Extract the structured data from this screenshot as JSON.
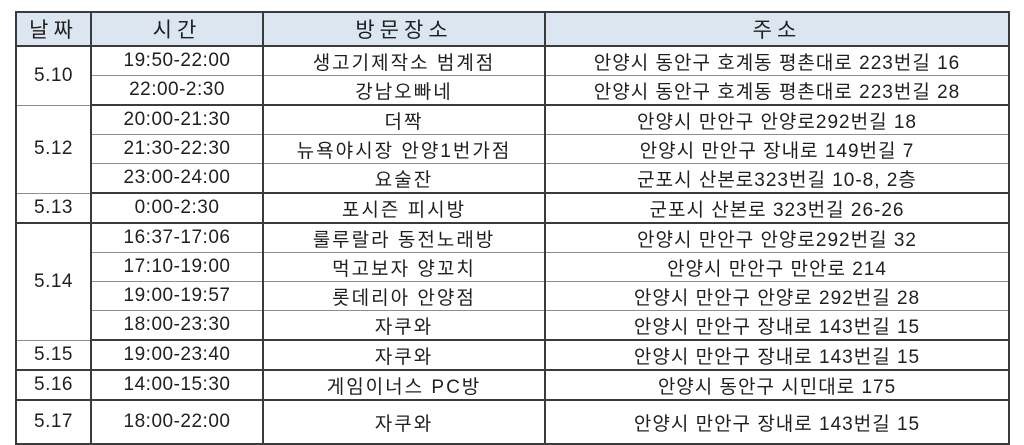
{
  "table": {
    "headers": {
      "date": "날짜",
      "time": "시간",
      "place": "방문장소",
      "address": "주소"
    },
    "groups": [
      {
        "date": "5.10",
        "rows": [
          {
            "time": "19:50-22:00",
            "place": "생고기제작소 범계점",
            "address": "안양시 동안구 호계동 평촌대로 223번길 16"
          },
          {
            "time": "22:00-2:30",
            "place": "강남오빠네",
            "address": "안양시 동안구 호계동 평촌대로 223번길 28"
          }
        ]
      },
      {
        "date": "5.12",
        "rows": [
          {
            "time": "20:00-21:30",
            "place": "더짝",
            "address": "안양시 만안구 안양로292번길 18"
          },
          {
            "time": "21:30-22:30",
            "place": "뉴욕야시장 안양1번가점",
            "address": "안양시 만안구 장내로 149번길 7"
          },
          {
            "time": "23:00-24:00",
            "place": "요술잔",
            "address": "군포시 산본로323번길 10-8, 2층"
          }
        ]
      },
      {
        "date": "5.13",
        "rows": [
          {
            "time": "0:00-2:30",
            "place": "포시즌 피시방",
            "address": "군포시 산본로 323번길 26-26"
          }
        ]
      },
      {
        "date": "5.14",
        "rows": [
          {
            "time": "16:37-17:06",
            "place": "룰루랄라 동전노래방",
            "address": "안양시 만안구 안양로292번길 32"
          },
          {
            "time": "17:10-19:00",
            "place": "먹고보자 양꼬치",
            "address": "안양시 만안구 만안로 214"
          },
          {
            "time": "19:00-19:57",
            "place": "롯데리아 안양점",
            "address": "안양시 만안구 안양로 292번길 28"
          },
          {
            "time": "18:00-23:30",
            "place": "자쿠와",
            "address": "안양시 만안구 장내로 143번길 15"
          }
        ]
      },
      {
        "date": "5.15",
        "rows": [
          {
            "time": "19:00-23:40",
            "place": "자쿠와",
            "address": "안양시 만안구 장내로 143번길 15"
          }
        ]
      },
      {
        "date": "5.16",
        "rows": [
          {
            "time": "14:00-15:30",
            "place": "게임이너스 PC방",
            "address": "안양시 동안구 시민대로 175"
          }
        ]
      },
      {
        "date": "5.17",
        "rows": [
          {
            "time": "18:00-22:00",
            "place": "자쿠와",
            "address": "안양시 만안구 장내로 143번길 15"
          }
        ]
      }
    ]
  },
  "colors": {
    "header_bg": "#dce6f1",
    "border_major": "#3b3b3b",
    "border_minor": "#8e8e8e",
    "text": "#1f1f1f",
    "page_bg": "#ffffff"
  }
}
